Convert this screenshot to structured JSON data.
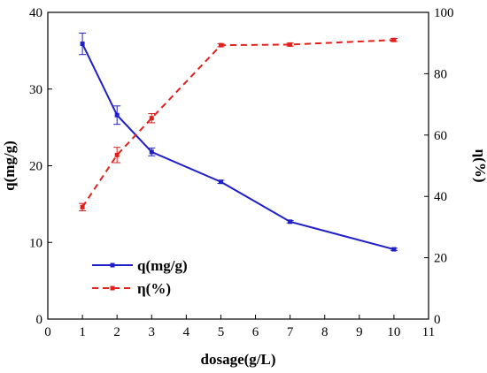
{
  "chart_data": {
    "type": "line",
    "xlabel": "dosage(g/L)",
    "ylabel_left": "q(mg/g)",
    "ylabel_right": "η(%)",
    "xlim": [
      0,
      11
    ],
    "ylim_left": [
      0,
      40
    ],
    "ylim_right": [
      0,
      100
    ],
    "x_ticks": [
      0,
      1,
      2,
      3,
      4,
      5,
      6,
      7,
      8,
      9,
      10,
      11
    ],
    "y_ticks_left": [
      0,
      10,
      20,
      30,
      40
    ],
    "y_ticks_right": [
      0,
      20,
      40,
      60,
      80,
      100
    ],
    "legend_position": "lower-left",
    "grid": false,
    "series": [
      {
        "name": "q(mg/g)",
        "axis": "left",
        "color": "#1f1fc8",
        "style": "solid",
        "x": [
          1,
          2,
          3,
          5,
          7,
          10
        ],
        "y": [
          35.9,
          26.6,
          21.8,
          17.9,
          12.7,
          9.1
        ],
        "error": [
          1.4,
          1.2,
          0.5,
          0.2,
          0.15,
          0.15
        ]
      },
      {
        "name": "η(%)",
        "axis": "right",
        "color": "#e0201b",
        "style": "dashed",
        "x": [
          1,
          2,
          3,
          5,
          7,
          10
        ],
        "y": [
          36.5,
          53.5,
          65.5,
          89.3,
          89.5,
          91.0
        ],
        "error": [
          1.2,
          2.5,
          1.5,
          0.5,
          0.5,
          0.5
        ]
      }
    ]
  }
}
